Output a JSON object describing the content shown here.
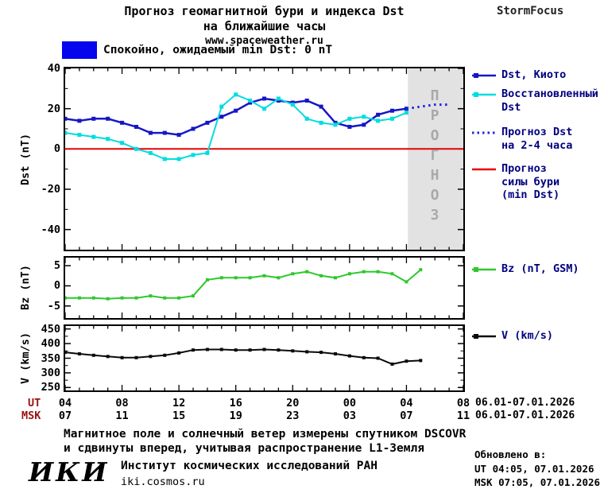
{
  "header": {
    "title_line1": "Прогноз геомагнитной бури и индекса Dst",
    "title_line2": "на ближайшие часы",
    "site": "www.spaceweather.ru",
    "brand": "StormFocus"
  },
  "status": {
    "label": "Спокойно, ожидаемый min Dst: 0 nT",
    "color": "#0505ee"
  },
  "colors": {
    "forecast_region": "#e2e2e2",
    "axis": "#000000",
    "legend_text": "#000080"
  },
  "chart_data": [
    {
      "type": "line",
      "panel": "dst",
      "title": "Прогноз геомагнитной бури и индекса Dst на ближайшие часы",
      "ylabel": "Dst (nT)",
      "ylim": [
        -50,
        40
      ],
      "yticks": [
        40,
        20,
        0,
        -20,
        -40
      ],
      "yminor": [
        30,
        10,
        -10,
        -30
      ],
      "xlim_hours": [
        4,
        32
      ],
      "xtick_hours": [
        4,
        8,
        12,
        16,
        20,
        24,
        28,
        32
      ],
      "xminor_step": 1,
      "forecast_region_hours": [
        28.1,
        32
      ],
      "watermark": "П\nР\nО\nГ\nН\nО\nЗ",
      "legend_position": "right",
      "series": [
        {
          "name": "Прогноз силы бури (min Dst)",
          "color": "#e80000",
          "width": 2,
          "x": [
            4,
            32
          ],
          "y": [
            0,
            0
          ]
        },
        {
          "name": "Dst, Киото",
          "color": "#1616c8",
          "width": 2.5,
          "marker": true,
          "marker_size": 5,
          "x": [
            4,
            5,
            6,
            7,
            8,
            9,
            10,
            11,
            12,
            13,
            14,
            15,
            16,
            17,
            18,
            19,
            20,
            21,
            22,
            23,
            24,
            25,
            26,
            27,
            28
          ],
          "y": [
            15,
            14,
            15,
            15,
            13,
            11,
            8,
            8,
            7,
            10,
            13,
            16,
            19,
            23,
            25,
            24,
            23,
            24,
            21,
            13,
            11,
            12,
            17,
            19,
            20
          ]
        },
        {
          "name": "Восстановленный Dst",
          "color": "#00dde0",
          "width": 2,
          "marker": true,
          "marker_size": 5,
          "x": [
            4,
            5,
            6,
            7,
            8,
            9,
            10,
            11,
            12,
            13,
            14,
            15,
            16,
            17,
            18,
            19,
            20,
            21,
            22,
            23,
            24,
            25,
            26,
            27,
            28
          ],
          "y": [
            8,
            7,
            6,
            5,
            3,
            0,
            -2,
            -5,
            -5,
            -3,
            -2,
            21,
            27,
            24,
            20,
            25,
            22,
            15,
            13,
            12,
            15,
            16,
            14,
            15,
            18
          ]
        },
        {
          "name": "Прогноз Dst на 2-4 часа",
          "color": "#2525e0",
          "width": 3,
          "style": "dotted",
          "x": [
            28,
            29,
            30,
            31
          ],
          "y": [
            20,
            21,
            22,
            22
          ]
        }
      ]
    },
    {
      "type": "line",
      "panel": "bz",
      "ylabel": "Bz (nT)",
      "ylim": [
        -8,
        7
      ],
      "yticks": [
        5,
        0,
        -5
      ],
      "xlim_hours": [
        4,
        32
      ],
      "xtick_hours": [
        4,
        8,
        12,
        16,
        20,
        24,
        28,
        32
      ],
      "xminor_step": 1,
      "series": [
        {
          "name": "Bz (nT, GSM)",
          "color": "#2ec82e",
          "width": 2,
          "marker": true,
          "marker_size": 4,
          "x": [
            4,
            5,
            6,
            7,
            8,
            9,
            10,
            11,
            12,
            13,
            14,
            15,
            16,
            17,
            18,
            19,
            20,
            21,
            22,
            23,
            24,
            25,
            26,
            27,
            28,
            29
          ],
          "y": [
            -3,
            -3,
            -3,
            -3.2,
            -3,
            -3,
            -2.5,
            -3,
            -3,
            -2.5,
            1.5,
            2,
            2,
            2,
            2.5,
            2,
            3,
            3.5,
            2.5,
            2,
            3,
            3.5,
            3.5,
            3,
            1,
            4
          ]
        }
      ]
    },
    {
      "type": "line",
      "panel": "v",
      "ylabel": "V (km/s)",
      "ylim": [
        240,
        460
      ],
      "yticks": [
        450,
        400,
        350,
        300,
        250
      ],
      "yminor": [
        425,
        375,
        325,
        275
      ],
      "xlim_hours": [
        4,
        32
      ],
      "xtick_hours": [
        4,
        8,
        12,
        16,
        20,
        24,
        28,
        32
      ],
      "xminor_step": 1,
      "series": [
        {
          "name": "V (km/s)",
          "color": "#0a0a0a",
          "width": 2,
          "marker": true,
          "marker_size": 4,
          "x": [
            4,
            5,
            6,
            7,
            8,
            9,
            10,
            11,
            12,
            13,
            14,
            15,
            16,
            17,
            18,
            19,
            20,
            21,
            22,
            23,
            24,
            25,
            26,
            27,
            28,
            29
          ],
          "y": [
            370,
            365,
            360,
            356,
            352,
            352,
            356,
            360,
            368,
            378,
            380,
            380,
            378,
            378,
            380,
            378,
            375,
            372,
            370,
            365,
            358,
            352,
            350,
            330,
            340,
            342
          ]
        }
      ]
    }
  ],
  "legend": {
    "items": [
      {
        "style": "solid-marker",
        "color": "#1616c8",
        "lines": [
          "Dst, Киото"
        ]
      },
      {
        "style": "solid-marker",
        "color": "#00dde0",
        "lines": [
          "Восстановленный",
          "Dst"
        ]
      },
      {
        "style": "dotted",
        "color": "#2525e0",
        "lines": [
          "Прогноз Dst",
          "на 2-4 часа"
        ]
      },
      {
        "style": "solid",
        "color": "#e80000",
        "lines": [
          "Прогноз",
          "силы бури",
          "(min Dst)"
        ]
      },
      {
        "style": "solid-marker",
        "color": "#2ec82e",
        "lines": [
          "Bz (nT, GSM)"
        ]
      },
      {
        "style": "solid-marker",
        "color": "#0a0a0a",
        "lines": [
          "V (km/s)"
        ]
      }
    ]
  },
  "xaxis": {
    "ut_label": "UT",
    "msk_label": "MSK",
    "hours": [
      4,
      8,
      12,
      16,
      20,
      24,
      28,
      32
    ],
    "ut_ticks": [
      "04",
      "08",
      "12",
      "16",
      "20",
      "00",
      "04",
      "08"
    ],
    "msk_ticks": [
      "07",
      "11",
      "15",
      "19",
      "23",
      "03",
      "07",
      "11"
    ],
    "ut_date_range": "06.01-07.01.2026",
    "msk_date_range": "06.01-07.01.2026"
  },
  "footer": {
    "note_line1": "Магнитное поле и солнечный ветер измерены спутником DSCOVR",
    "note_line2": "и сдвинуты вперед, учитывая распространение L1-Земля",
    "updated_label": "Обновлено в:",
    "updated_ut": "UT  04:05, 07.01.2026",
    "updated_msk": "MSK 07:05, 07.01.2026",
    "logo": "ИКИ",
    "institute": "Институт космических исследований РАН",
    "institute_site": "iki.cosmos.ru"
  }
}
